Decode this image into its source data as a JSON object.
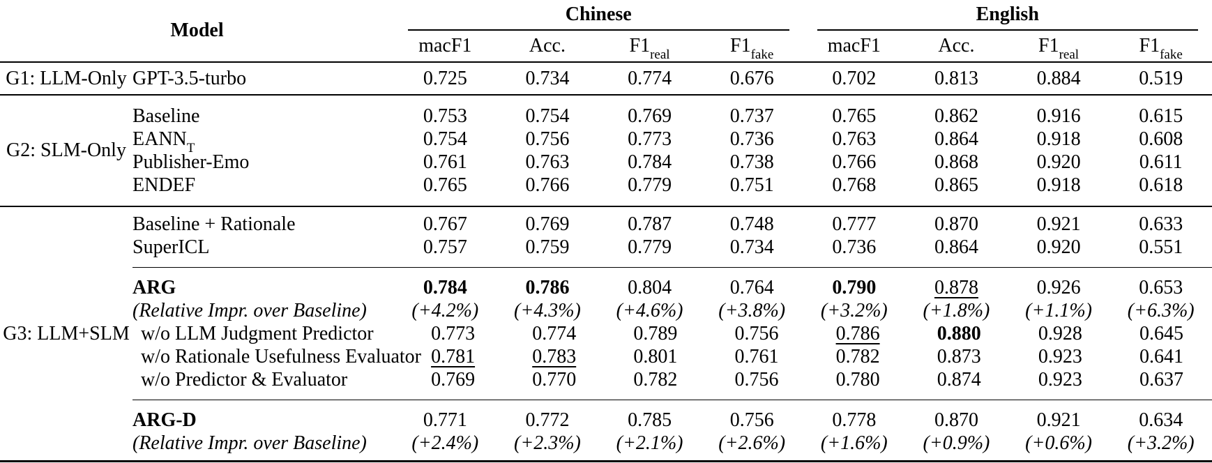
{
  "header": {
    "model_label": "Model",
    "groups": [
      {
        "label": "Chinese",
        "columns": [
          {
            "main": "macF1",
            "sub": ""
          },
          {
            "main": "Acc.",
            "sub": ""
          },
          {
            "main": "F1",
            "sub": "real"
          },
          {
            "main": "F1",
            "sub": "fake"
          }
        ]
      },
      {
        "label": "English",
        "columns": [
          {
            "main": "macF1",
            "sub": ""
          },
          {
            "main": "Acc.",
            "sub": ""
          },
          {
            "main": "F1",
            "sub": "real"
          },
          {
            "main": "F1",
            "sub": "fake"
          }
        ]
      }
    ]
  },
  "body": {
    "groups": [
      {
        "label": "G1: LLM-Only",
        "subgroups": [
          {
            "rows": [
              {
                "name_main": "GPT-3.5-turbo",
                "name_sub": "",
                "values": [
                  "0.725",
                  "0.734",
                  "0.774",
                  "0.676",
                  "0.702",
                  "0.813",
                  "0.884",
                  "0.519"
                ]
              }
            ]
          }
        ]
      },
      {
        "label": "G2: SLM-Only",
        "subgroups": [
          {
            "rows": [
              {
                "name_main": "Baseline",
                "name_sub": "",
                "values": [
                  "0.753",
                  "0.754",
                  "0.769",
                  "0.737",
                  "0.765",
                  "0.862",
                  "0.916",
                  "0.615"
                ]
              },
              {
                "name_main": "EANN",
                "name_sub": "T",
                "values": [
                  "0.754",
                  "0.756",
                  "0.773",
                  "0.736",
                  "0.763",
                  "0.864",
                  "0.918",
                  "0.608"
                ]
              },
              {
                "name_main": "Publisher-Emo",
                "name_sub": "",
                "values": [
                  "0.761",
                  "0.763",
                  "0.784",
                  "0.738",
                  "0.766",
                  "0.868",
                  "0.920",
                  "0.611"
                ]
              },
              {
                "name_main": "ENDEF",
                "name_sub": "",
                "values": [
                  "0.765",
                  "0.766",
                  "0.779",
                  "0.751",
                  "0.768",
                  "0.865",
                  "0.918",
                  "0.618"
                ]
              }
            ]
          }
        ]
      },
      {
        "label": "G3: LLM+SLM",
        "subgroups": [
          {
            "rows": [
              {
                "name_main": "Baseline + Rationale",
                "name_sub": "",
                "values": [
                  "0.767",
                  "0.769",
                  "0.787",
                  "0.748",
                  "0.777",
                  "0.870",
                  "0.921",
                  "0.633"
                ]
              },
              {
                "name_main": "SuperICL",
                "name_sub": "",
                "values": [
                  "0.757",
                  "0.759",
                  "0.779",
                  "0.734",
                  "0.736",
                  "0.864",
                  "0.920",
                  "0.551"
                ]
              }
            ]
          },
          {
            "rows": [
              {
                "name_main": "ARG",
                "name_sub": "",
                "values": [
                  "0.784",
                  "0.786",
                  "0.804",
                  "0.764",
                  "0.790",
                  "0.878",
                  "0.926",
                  "0.653"
                ]
              },
              {
                "name_main": "(Relative Impr. over Baseline)",
                "name_sub": "",
                "values": [
                  "(+4.2%)",
                  "(+4.3%)",
                  "(+4.6%)",
                  "(+3.8%)",
                  "(+3.2%)",
                  "(+1.8%)",
                  "(+1.1%)",
                  "(+6.3%)"
                ]
              },
              {
                "name_main": "w/o LLM Judgment Predictor",
                "name_sub": "",
                "values": [
                  "0.773",
                  "0.774",
                  "0.789",
                  "0.756",
                  "0.786",
                  "0.880",
                  "0.928",
                  "0.645"
                ]
              },
              {
                "name_main": "w/o Rationale Usefulness Evaluator",
                "name_sub": "",
                "values": [
                  "0.781",
                  "0.783",
                  "0.801",
                  "0.761",
                  "0.782",
                  "0.873",
                  "0.923",
                  "0.641"
                ]
              },
              {
                "name_main": "w/o Predictor & Evaluator",
                "name_sub": "",
                "values": [
                  "0.769",
                  "0.770",
                  "0.782",
                  "0.756",
                  "0.780",
                  "0.874",
                  "0.923",
                  "0.637"
                ]
              }
            ]
          },
          {
            "rows": [
              {
                "name_main": "ARG-D",
                "name_sub": "",
                "values": [
                  "0.771",
                  "0.772",
                  "0.785",
                  "0.756",
                  "0.778",
                  "0.870",
                  "0.921",
                  "0.634"
                ]
              },
              {
                "name_main": "(Relative Impr. over Baseline)",
                "name_sub": "",
                "values": [
                  "(+2.4%)",
                  "(+2.3%)",
                  "(+2.1%)",
                  "(+2.6%)",
                  "(+1.6%)",
                  "(+0.9%)",
                  "(+0.6%)",
                  "(+3.2%)"
                ]
              }
            ]
          }
        ]
      }
    ]
  }
}
